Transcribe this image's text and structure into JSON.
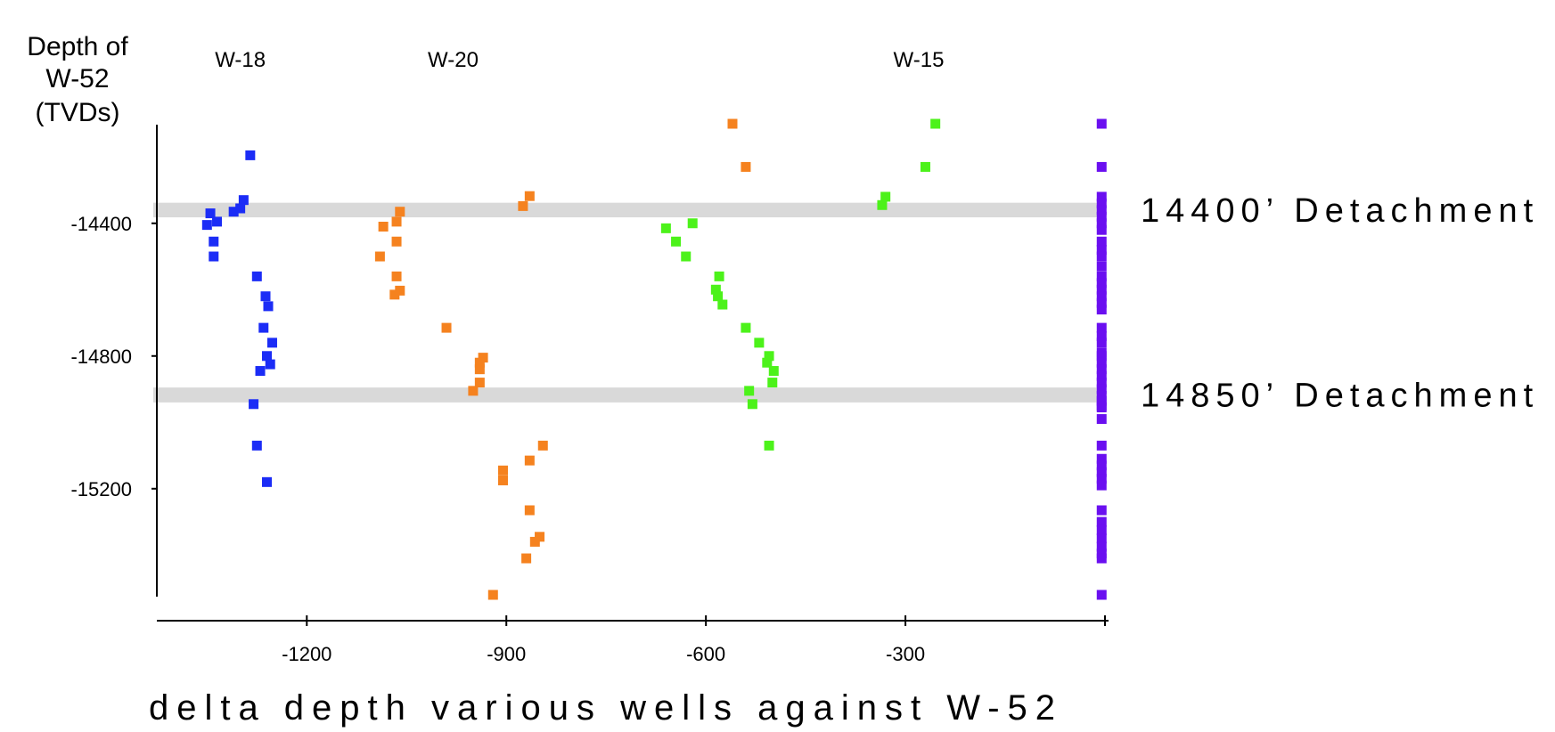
{
  "chart_data": {
    "type": "scatter",
    "title": "",
    "xlabel": "delta depth various wells against W-52",
    "ylabel_lines": [
      "Depth of",
      "W-52",
      "(TVDs)"
    ],
    "xlim": [
      -1400,
      0
    ],
    "ylim": [
      -15520,
      -14100
    ],
    "x_ticks": [
      -1200,
      -900,
      -600,
      -300,
      0
    ],
    "x_tick_labels": [
      "-1200",
      "-900",
      "-600",
      "-300",
      ""
    ],
    "y_ticks": [
      -14400,
      -14800,
      -15200
    ],
    "y_tick_labels": [
      "-14400",
      "-14800",
      "-15200"
    ],
    "grid": false,
    "legend": "none",
    "well_labels": [
      {
        "text": "W-18",
        "x": -1300
      },
      {
        "text": "W-20",
        "x": -980
      },
      {
        "text": "W-15",
        "x": -280
      }
    ],
    "bands": [
      {
        "label": "14400’ Detachment",
        "y_from": -14338,
        "y_to": -14382
      },
      {
        "label": "14850’ Detachment",
        "y_from": -14895,
        "y_to": -14940
      }
    ],
    "series": [
      {
        "color": "#1b2cf6",
        "x": [
          -1285,
          -1295,
          -1310,
          -1300,
          -1345,
          -1335,
          -1350,
          -1340,
          -1340,
          -1275,
          -1262,
          -1258,
          -1265,
          -1252,
          -1260,
          -1255,
          -1270,
          -1280,
          -1275,
          -1260
        ],
        "y": [
          -14195,
          -14330,
          -14365,
          -14355,
          -14370,
          -14395,
          -14405,
          -14455,
          -14500,
          -14560,
          -14620,
          -14650,
          -14715,
          -14760,
          -14800,
          -14825,
          -14845,
          -14945,
          -15070,
          -15180
        ]
      },
      {
        "color": "#f5821f",
        "x": [
          -560,
          -540,
          -865,
          -875,
          -1060,
          -1065,
          -1085,
          -1065,
          -1090,
          -1065,
          -1060,
          -1068,
          -990,
          -935,
          -940,
          -940,
          -940,
          -950,
          -845,
          -865,
          -905,
          -905,
          -865,
          -850,
          -857,
          -870,
          -920
        ],
        "y": [
          -14100,
          -14230,
          -14318,
          -14348,
          -14365,
          -14395,
          -14410,
          -14455,
          -14500,
          -14560,
          -14603,
          -14615,
          -14715,
          -14805,
          -14820,
          -14840,
          -14880,
          -14905,
          -15070,
          -15115,
          -15145,
          -15175,
          -15265,
          -15345,
          -15360,
          -15410,
          -15520
        ]
      },
      {
        "color": "#4cf21a",
        "x": [
          -255,
          -270,
          -330,
          -335,
          -620,
          -660,
          -645,
          -630,
          -580,
          -585,
          -582,
          -575,
          -540,
          -520,
          -505,
          -508,
          -498,
          -500,
          -535,
          -530,
          -505
        ],
        "y": [
          -14100,
          -14230,
          -14320,
          -14345,
          -14400,
          -14415,
          -14455,
          -14500,
          -14560,
          -14600,
          -14620,
          -14645,
          -14715,
          -14760,
          -14800,
          -14820,
          -14845,
          -14880,
          -14905,
          -14945,
          -15070
        ]
      },
      {
        "color": "#6a0ff0",
        "x": [
          -5,
          -5,
          -5,
          -5,
          -5,
          -5,
          -5,
          -5,
          -5,
          -5,
          -5,
          -5,
          -5,
          -5,
          -5,
          -5,
          -5,
          -5,
          -5,
          -5,
          -5,
          -5,
          -5,
          -5,
          -5,
          -5,
          -5,
          -5,
          -5,
          -5,
          -5,
          -5,
          -5,
          -5,
          -5,
          -5,
          -5,
          -5,
          -5,
          -5,
          -5,
          -5,
          -5,
          -5,
          -5,
          -5,
          -5
        ],
        "y": [
          -14100,
          -14230,
          -14320,
          -14340,
          -14360,
          -14380,
          -14400,
          -14420,
          -14455,
          -14480,
          -14500,
          -14530,
          -14560,
          -14580,
          -14600,
          -14620,
          -14640,
          -14660,
          -14715,
          -14740,
          -14760,
          -14790,
          -14800,
          -14820,
          -14840,
          -14860,
          -14880,
          -14900,
          -14920,
          -14935,
          -14950,
          -14990,
          -15070,
          -15110,
          -15130,
          -15150,
          -15170,
          -15190,
          -15265,
          -15300,
          -15325,
          -15350,
          -15375,
          -15395,
          -15410,
          -15520,
          -14955
        ]
      }
    ]
  }
}
